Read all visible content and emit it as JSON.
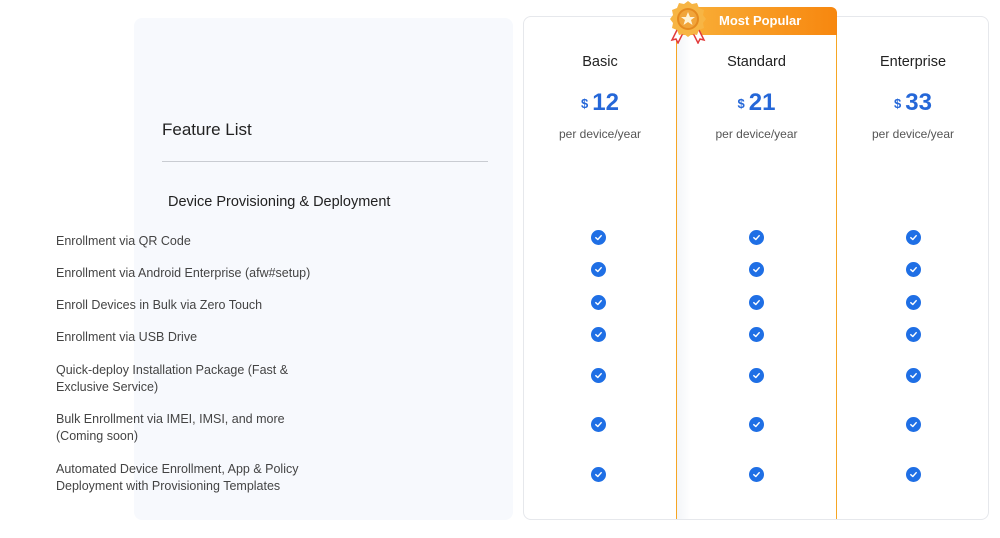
{
  "feature_panel": {
    "title": "Feature List",
    "section_title": "Device Provisioning & Deployment",
    "features": [
      "Enrollment via QR Code",
      "Enrollment via Android Enterprise (afw#setup)",
      "Enroll Devices in Bulk via Zero Touch",
      "Enrollment via USB Drive",
      "Quick-deploy Installation Package (Fast & Exclusive Service)",
      "Bulk Enrollment via IMEI, IMSI, and more (Coming soon)",
      "Automated Device Enrollment, App & Policy Deployment with Provisioning Templates"
    ]
  },
  "badge": {
    "label": "Most Popular",
    "icon": "star-medal-icon",
    "color": "#f7870f"
  },
  "plans": [
    {
      "name": "Basic",
      "currency": "$",
      "price": "12",
      "period": "per device/year",
      "popular": false
    },
    {
      "name": "Standard",
      "currency": "$",
      "price": "21",
      "period": "per device/year",
      "popular": true
    },
    {
      "name": "Enterprise",
      "currency": "$",
      "price": "33",
      "period": "per device/year",
      "popular": false
    }
  ],
  "availability": {
    "icon": "check-circle-icon",
    "color": "#1f6fe5",
    "matrix": [
      [
        true,
        true,
        true
      ],
      [
        true,
        true,
        true
      ],
      [
        true,
        true,
        true
      ],
      [
        true,
        true,
        true
      ],
      [
        true,
        true,
        true
      ],
      [
        true,
        true,
        true
      ],
      [
        true,
        true,
        true
      ]
    ]
  }
}
